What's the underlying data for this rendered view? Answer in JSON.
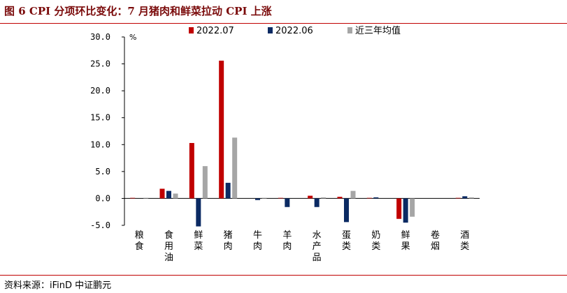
{
  "header": {
    "title": "图 6   CPI 分项环比变化：7 月猪肉和鲜菜拉动 CPI 上涨"
  },
  "footer": {
    "source": "资料来源：iFinD   中证鹏元"
  },
  "colors": {
    "rule": "#c00000",
    "title": "#7a0a0a"
  },
  "chart_data": {
    "type": "bar",
    "title": "",
    "xlabel": "",
    "ylabel": "%",
    "ylim": [
      -5.0,
      30.0
    ],
    "yticks": [
      -5.0,
      0.0,
      5.0,
      10.0,
      15.0,
      20.0,
      25.0,
      30.0
    ],
    "ytick_labels": [
      "-5.0",
      "0.0",
      "5.0",
      "10.0",
      "15.0",
      "20.0",
      "25.0",
      "30.0"
    ],
    "legend_position": "top",
    "grid": false,
    "categories": [
      "粮食",
      "食用油",
      "鲜菜",
      "猪肉",
      "牛肉",
      "羊肉",
      "水产品",
      "蛋类",
      "奶类",
      "鲜果",
      "卷烟",
      "酒类"
    ],
    "series": [
      {
        "name": "2022.07",
        "color": "#c00000",
        "values": [
          0.1,
          1.8,
          10.3,
          25.6,
          0.0,
          0.1,
          0.5,
          0.3,
          0.1,
          -3.8,
          0.0,
          0.1
        ]
      },
      {
        "name": "2022.06",
        "color": "#0b2a63",
        "values": [
          0.0,
          1.4,
          -5.2,
          2.9,
          -0.3,
          -1.6,
          -1.6,
          -4.4,
          0.2,
          -4.5,
          0.0,
          0.4
        ]
      },
      {
        "name": "近三年均值",
        "color": "#a6a6a6",
        "values": [
          0.1,
          0.9,
          6.0,
          11.3,
          0.1,
          0.0,
          0.2,
          1.4,
          0.0,
          -3.4,
          0.0,
          0.2
        ]
      }
    ]
  }
}
